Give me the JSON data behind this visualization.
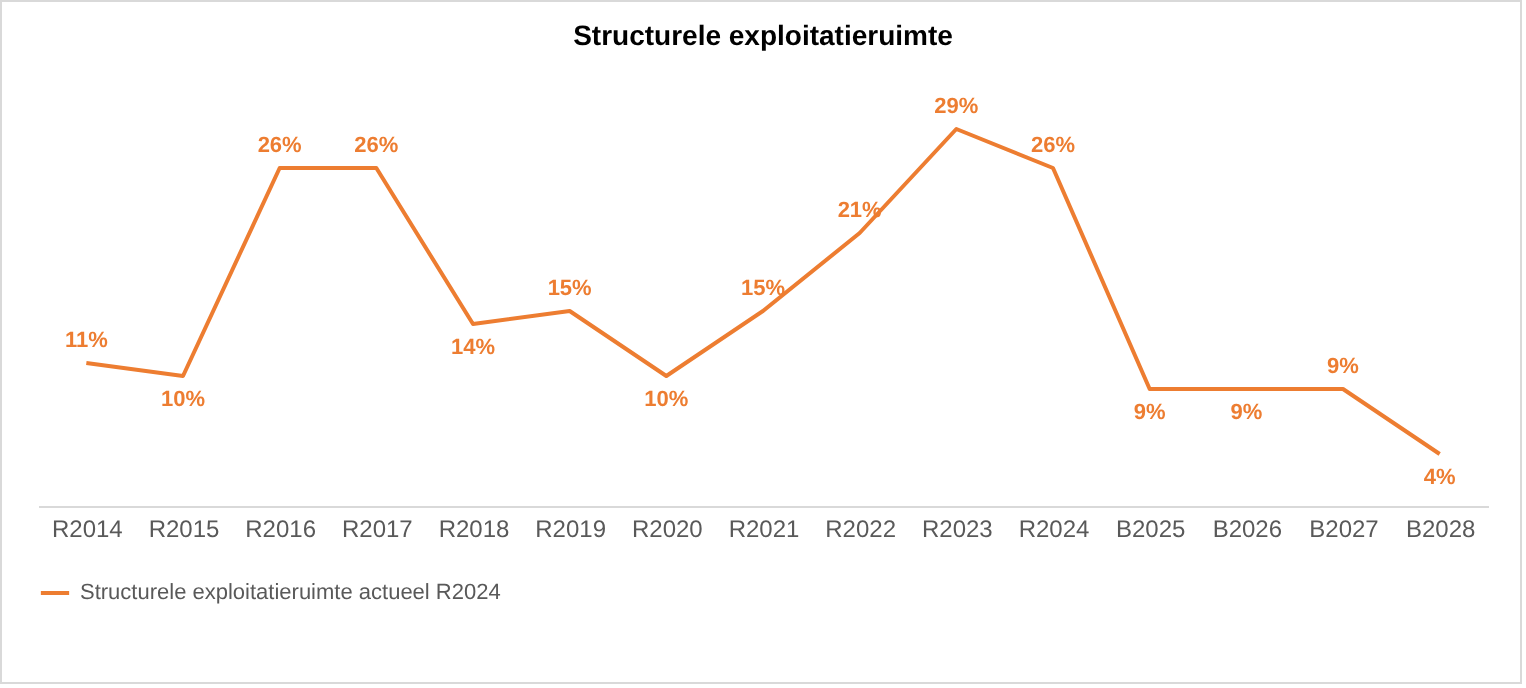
{
  "chart_data": {
    "type": "line",
    "title": "Structurele exploitatieruimte",
    "categories": [
      "R2014",
      "R2015",
      "R2016",
      "R2017",
      "R2018",
      "R2019",
      "R2020",
      "R2021",
      "R2022",
      "R2023",
      "R2024",
      "B2025",
      "B2026",
      "B2027",
      "B2028"
    ],
    "series": [
      {
        "name": "Structurele exploitatieruimte actueel R2024",
        "color": "#ed7d31",
        "values": [
          11,
          10,
          26,
          26,
          14,
          15,
          10,
          15,
          21,
          29,
          26,
          9,
          9,
          9,
          4
        ],
        "value_labels": [
          "11%",
          "10%",
          "26%",
          "26%",
          "14%",
          "15%",
          "10%",
          "15%",
          "21%",
          "29%",
          "26%",
          "9%",
          "9%",
          "9%",
          "4%"
        ]
      }
    ],
    "legend": "bottom",
    "grid": false,
    "marker": "none",
    "line_style": "solid",
    "tick_labels": "x"
  }
}
